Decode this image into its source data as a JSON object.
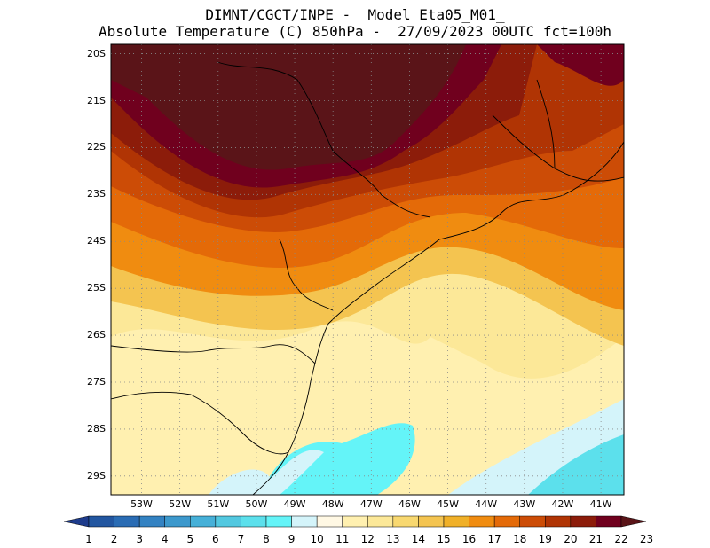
{
  "header": {
    "line1": "DIMNT/CGCT/INPE -  Model Eta05_M01_",
    "line2": "Absolute Temperature (C) 850hPa -  27/09/2023 00UTC fct=100h"
  },
  "map": {
    "lat_labels": [
      "20S",
      "21S",
      "22S",
      "23S",
      "24S",
      "25S",
      "26S",
      "27S",
      "28S",
      "29S"
    ],
    "lon_labels": [
      "53W",
      "52W",
      "51W",
      "50W",
      "49W",
      "48W",
      "47W",
      "46W",
      "45W",
      "44W",
      "43W",
      "42W",
      "41W"
    ],
    "lat_range": [
      -29.4,
      -19.8
    ],
    "lon_range": [
      -53.8,
      -40.4
    ],
    "grid": true
  },
  "colorbar": {
    "labels": [
      "1",
      "2",
      "3",
      "4",
      "5",
      "6",
      "7",
      "8",
      "9",
      "10",
      "11",
      "12",
      "13",
      "14",
      "15",
      "16",
      "17",
      "18",
      "19",
      "20",
      "21",
      "22",
      "23"
    ],
    "colors": [
      "#1e3c8c",
      "#2256a0",
      "#2a6cb4",
      "#3382c2",
      "#3c98cc",
      "#46b0d8",
      "#52c8e0",
      "#5ce0ec",
      "#64f4f8",
      "#d4f4fa",
      "#fff8e4",
      "#fff0b0",
      "#fce898",
      "#f8d870",
      "#f4c450",
      "#f0b028",
      "#f08c10",
      "#e46a08",
      "#cc4c06",
      "#b03404",
      "#8c1c0a",
      "#70001e",
      "#5a1418"
    ]
  }
}
